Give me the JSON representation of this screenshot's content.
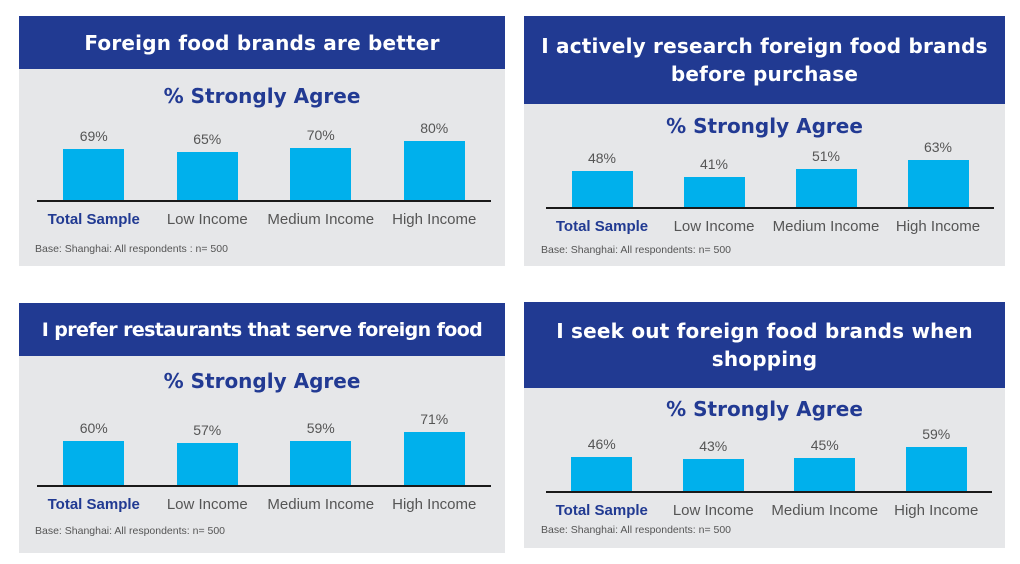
{
  "colors": {
    "header_bg": "#213a92",
    "panel_bg": "#e6e7e9",
    "bar": "#00b0ec",
    "subtitle": "#223a93",
    "label": "#555555"
  },
  "chart_data": [
    {
      "type": "bar",
      "title": "Foreign food brands are better",
      "subtitle": "% Strongly Agree",
      "categories": [
        "Total Sample",
        "Low Income",
        "Medium Income",
        "High Income"
      ],
      "values": [
        69,
        65,
        70,
        80
      ],
      "value_labels": [
        "69%",
        "65%",
        "70%",
        "80%"
      ],
      "note": "Base: Shanghai: All respondents : n= 500",
      "xlabel": "",
      "ylabel": "% Strongly Agree",
      "ylim": [
        0,
        100
      ],
      "grid": false
    },
    {
      "type": "bar",
      "title": "I actively research foreign food brands before purchase",
      "subtitle": "% Strongly Agree",
      "categories": [
        "Total Sample",
        "Low Income",
        "Medium Income",
        "High Income"
      ],
      "values": [
        48,
        41,
        51,
        63
      ],
      "value_labels": [
        "48%",
        "41%",
        "51%",
        "63%"
      ],
      "note": "Base: Shanghai: All respondents: n= 500",
      "xlabel": "",
      "ylabel": "% Strongly Agree",
      "ylim": [
        0,
        100
      ],
      "grid": false
    },
    {
      "type": "bar",
      "title": "I prefer restaurants that serve foreign food",
      "subtitle": "% Strongly Agree",
      "categories": [
        "Total Sample",
        "Low Income",
        "Medium Income",
        "High Income"
      ],
      "values": [
        60,
        57,
        59,
        71
      ],
      "value_labels": [
        "60%",
        "57%",
        "59%",
        "71%"
      ],
      "note": "Base: Shanghai: All respondents: n= 500",
      "xlabel": "",
      "ylabel": "% Strongly Agree",
      "ylim": [
        0,
        100
      ],
      "grid": false
    },
    {
      "type": "bar",
      "title": "I seek out foreign food brands when shopping",
      "subtitle": "% Strongly Agree",
      "categories": [
        "Total Sample",
        "Low Income",
        "Medium Income",
        "High Income"
      ],
      "values": [
        46,
        43,
        45,
        59
      ],
      "value_labels": [
        "46%",
        "43%",
        "45%",
        "59%"
      ],
      "note": "Base: Shanghai: All respondents: n= 500",
      "xlabel": "",
      "ylabel": "% Strongly Agree",
      "ylim": [
        0,
        100
      ],
      "grid": false
    }
  ]
}
